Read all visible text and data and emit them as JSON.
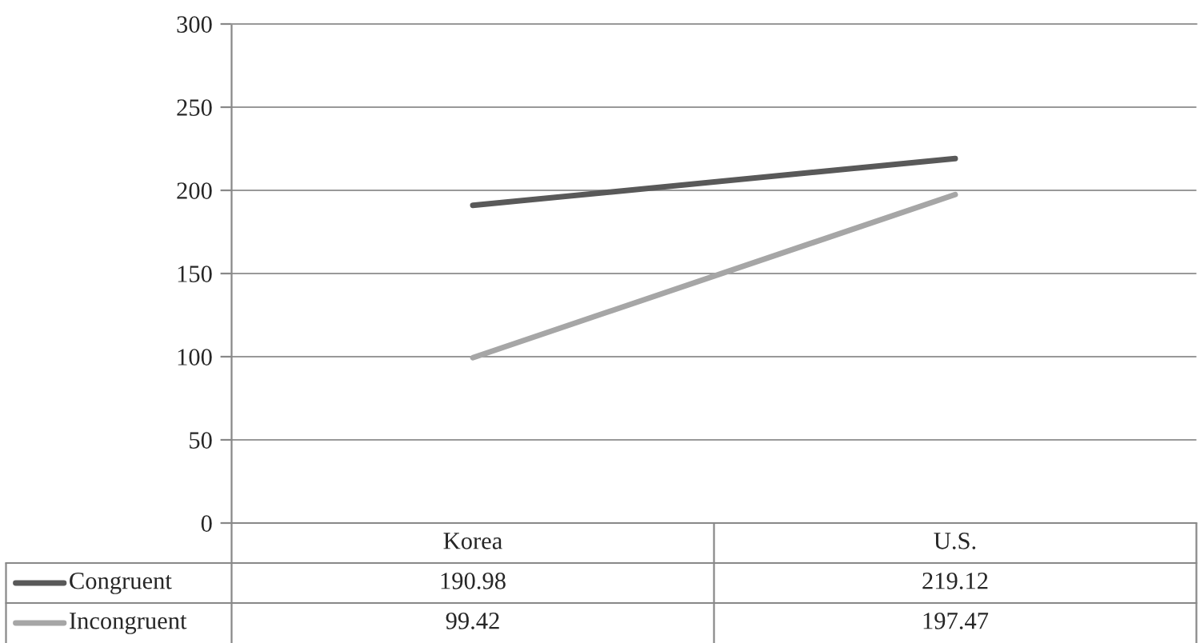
{
  "chart_data": {
    "type": "line",
    "categories": [
      "Korea",
      "U.S."
    ],
    "series": [
      {
        "name": "Congruent",
        "color": "#595959",
        "values": [
          190.98,
          219.12
        ]
      },
      {
        "name": "Incongruent",
        "color": "#a6a6a6",
        "values": [
          99.42,
          197.47
        ]
      }
    ],
    "ylim": [
      0,
      300
    ],
    "yticks": [
      0,
      50,
      100,
      150,
      200,
      250,
      300
    ],
    "grid": "y",
    "data_labels": true,
    "legend": "bottom",
    "marker": "none",
    "line_style": "solid"
  }
}
